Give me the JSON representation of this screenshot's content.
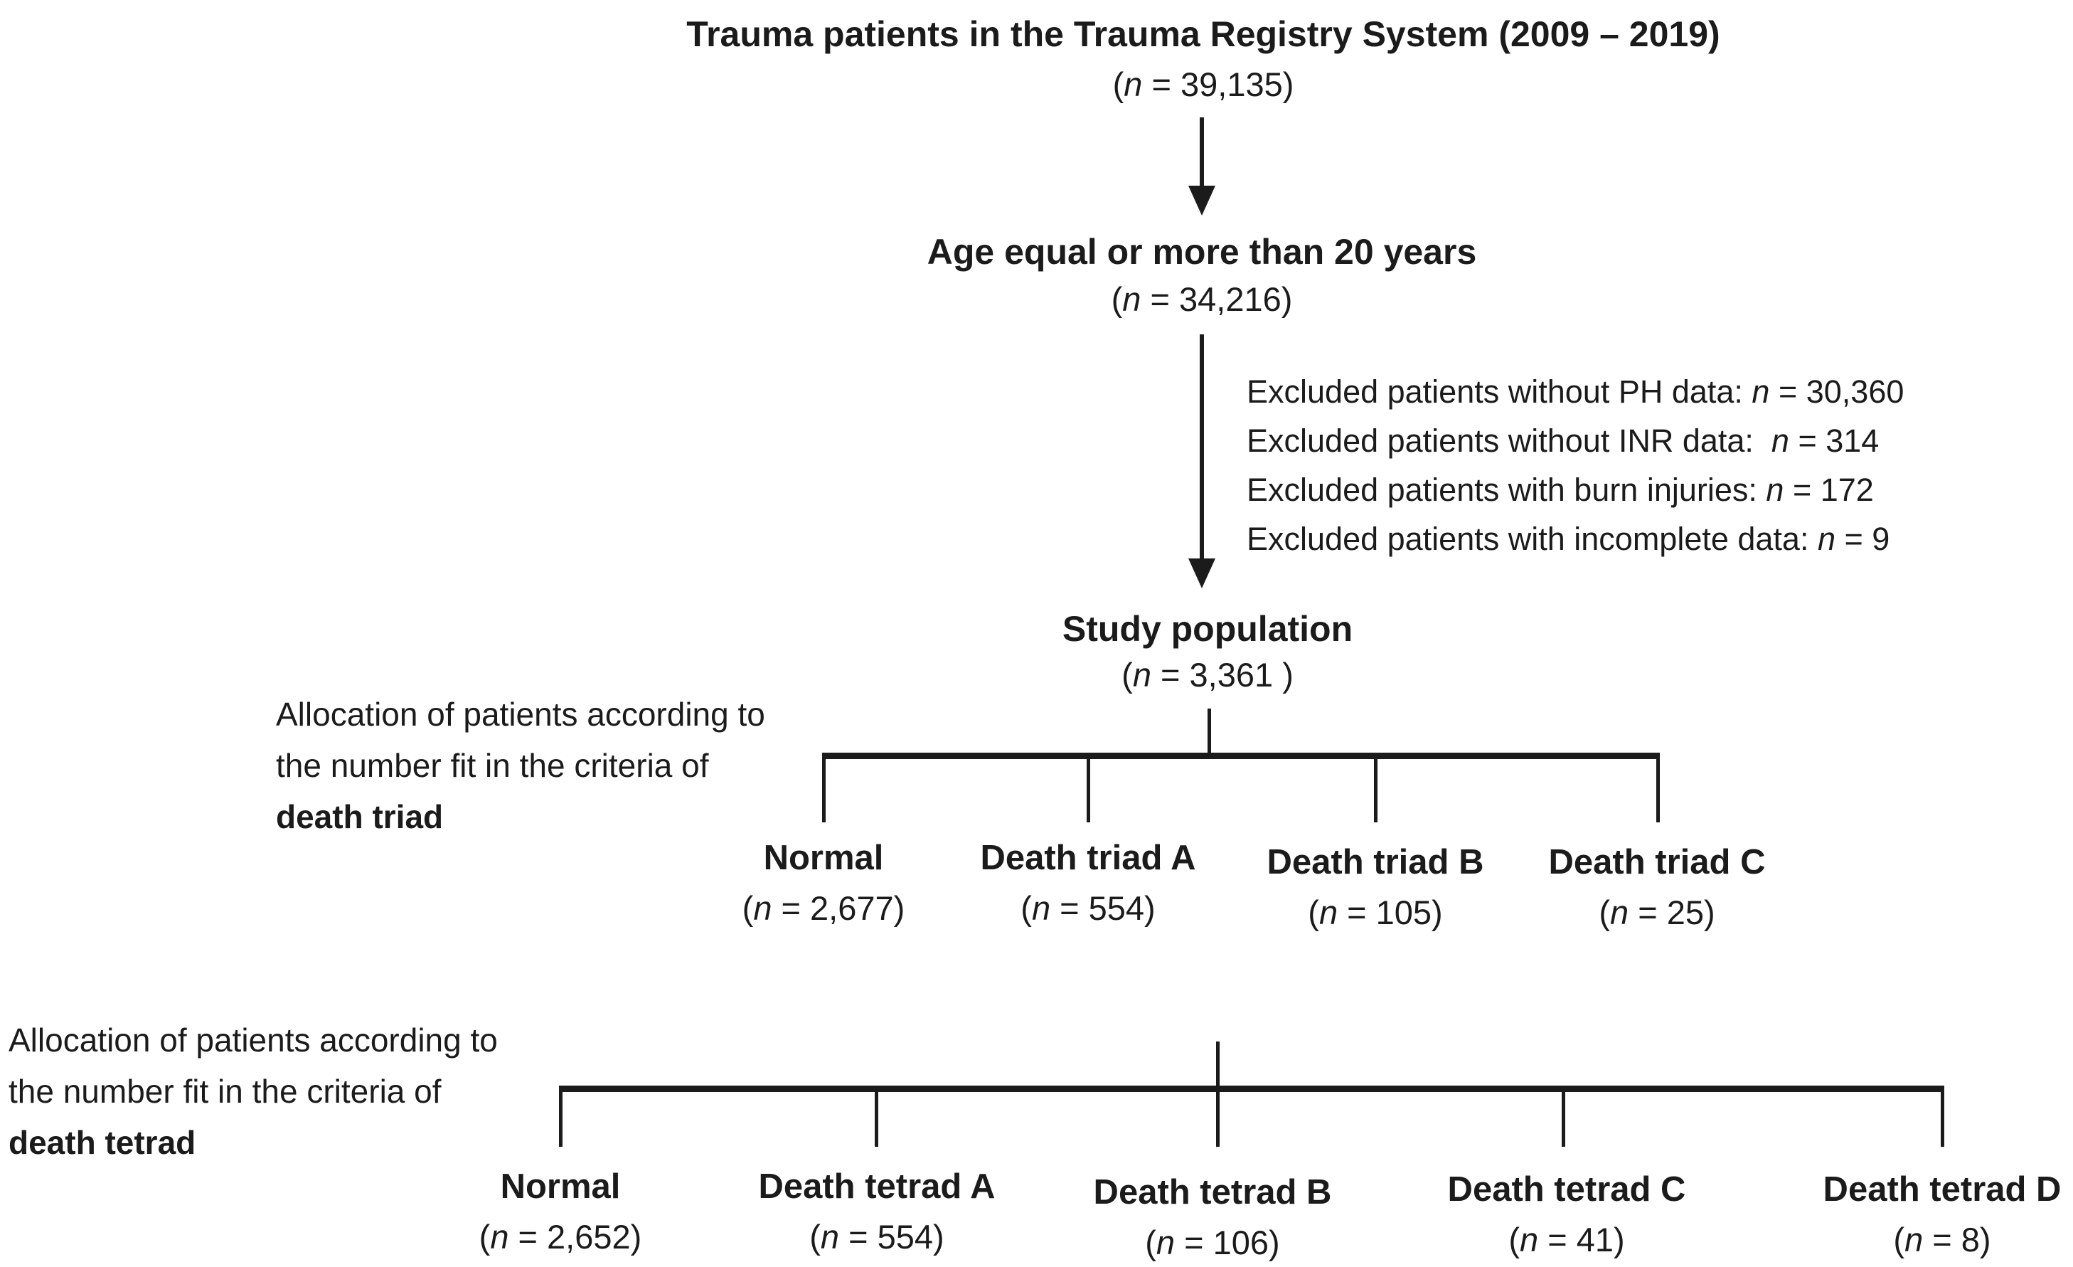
{
  "figure": {
    "background_color": "#ffffff",
    "text_color": "#1b1b1b",
    "line_color": "#1b1b1b",
    "n_format": {
      "open": "(",
      "symbol": "n",
      "eq": " = ",
      "close": ")"
    },
    "top_chain": {
      "registry": {
        "title": "Trauma patients in the Trauma Registry System (2009 – 2019)",
        "n": "39,135"
      },
      "age": {
        "title": "Age equal or more than 20 years",
        "n": "34,216"
      },
      "study": {
        "title": "Study population",
        "n": "3,361 "
      }
    },
    "exclusions": [
      {
        "text": "Excluded patients without PH data: ",
        "n": "30,360"
      },
      {
        "text": "Excluded patients without INR data:  ",
        "n": "314"
      },
      {
        "text": "Excluded patients with burn injuries: ",
        "n": "172"
      },
      {
        "text": "Excluded patients with incomplete data: ",
        "n": "9"
      }
    ],
    "triad": {
      "annotation": {
        "line1": "Allocation of patients according to",
        "line2": "the number fit in the criteria of",
        "line3": "death triad"
      },
      "branches": [
        {
          "label": "Normal",
          "n": "2,677"
        },
        {
          "label": "Death triad A",
          "n": "554"
        },
        {
          "label": "Death triad B",
          "n": "105"
        },
        {
          "label": "Death triad C",
          "n": "25"
        }
      ]
    },
    "tetrad": {
      "annotation": {
        "line1": "Allocation of patients according to",
        "line2": "the number fit in the criteria of",
        "line3": "death tetrad"
      },
      "branches": [
        {
          "label": "Normal",
          "n": "2,652"
        },
        {
          "label": "Death tetrad A",
          "n": "554"
        },
        {
          "label": "Death tetrad B",
          "n": "106"
        },
        {
          "label": "Death tetrad C",
          "n": "41"
        },
        {
          "label": "Death tetrad D",
          "n": "8"
        }
      ]
    }
  }
}
